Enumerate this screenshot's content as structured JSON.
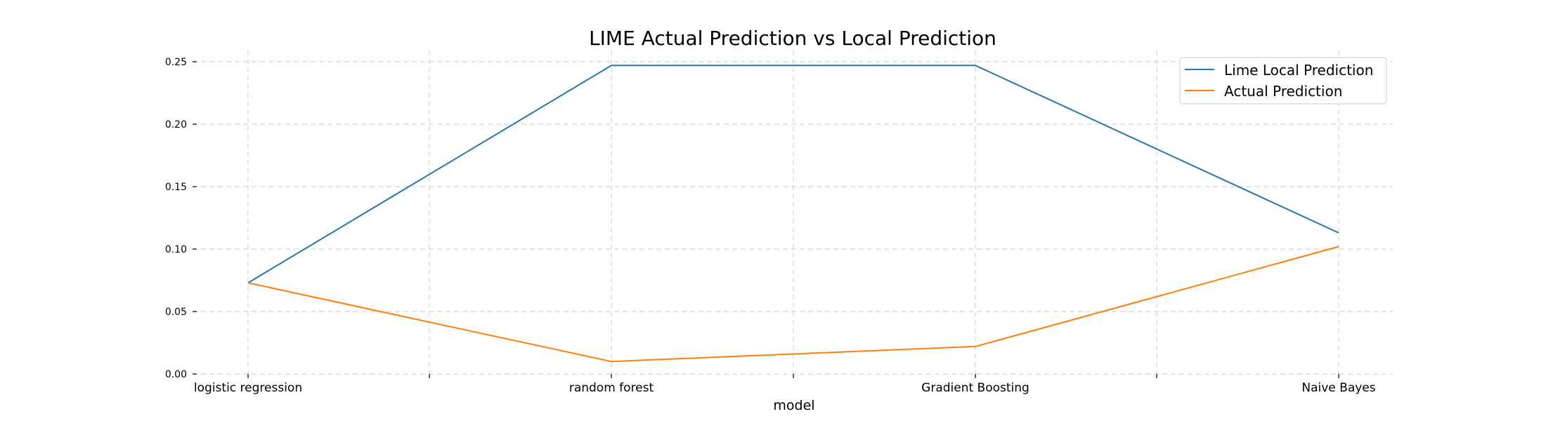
{
  "chart_data": {
    "type": "line",
    "title": "LIME Actual Prediction vs Local Prediction",
    "xlabel": "model",
    "ylabel": "",
    "categories": [
      "logistic regression",
      "",
      "random forest",
      "",
      "Gradient Boosting",
      "",
      "Naive Bayes"
    ],
    "x": [
      0,
      1,
      2,
      3,
      4,
      5,
      6
    ],
    "yticks": [
      "0.00",
      "0.05",
      "0.10",
      "0.15",
      "0.20",
      "0.25"
    ],
    "ylim": [
      0,
      0.25
    ],
    "grid": true,
    "legend_position": "top-right",
    "series": [
      {
        "name": "Lime Local Prediction",
        "color": "#1f77b4",
        "x": [
          0,
          2,
          4,
          6
        ],
        "values": [
          0.073,
          0.247,
          0.247,
          0.113
        ]
      },
      {
        "name": "Actual Prediction",
        "color": "#ff7f0e",
        "x": [
          0,
          2,
          4,
          6
        ],
        "values": [
          0.073,
          0.01,
          0.022,
          0.102
        ]
      }
    ]
  }
}
